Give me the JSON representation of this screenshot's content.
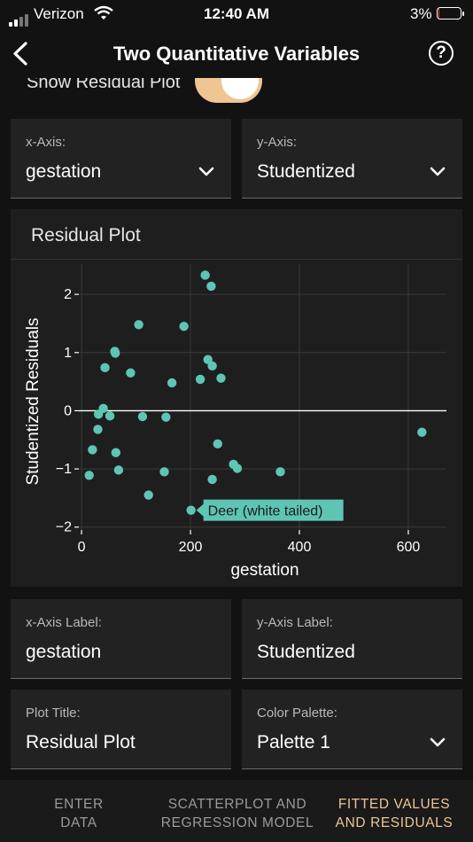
{
  "status": {
    "carrier": "Verizon",
    "time": "12:40 AM",
    "battery": "3%"
  },
  "nav": {
    "title": "Two Quantitative Variables"
  },
  "toggle": {
    "label": "Show Residual Plot",
    "on": true
  },
  "axes_select": {
    "x_label": "x-Axis:",
    "x_value": "gestation",
    "y_label": "y-Axis:",
    "y_value": "Studentized"
  },
  "card": {
    "title": "Residual Plot"
  },
  "chart_data": {
    "type": "scatter",
    "xlabel": "gestation",
    "ylabel": "Studentized Residuals",
    "xlim": [
      -5,
      670
    ],
    "ylim": [
      -2.05,
      2.52
    ],
    "xticks": [
      0,
      200,
      400,
      600
    ],
    "yticks": [
      -2,
      -1,
      0,
      1,
      2
    ],
    "grid": true,
    "reference_line_y": 0,
    "point_color": "#5ec5b5",
    "points": [
      {
        "x": 227,
        "y": 2.33
      },
      {
        "x": 238,
        "y": 2.14
      },
      {
        "x": 105,
        "y": 1.48
      },
      {
        "x": 188,
        "y": 1.45
      },
      {
        "x": 61,
        "y": 1.02
      },
      {
        "x": 62,
        "y": 0.99
      },
      {
        "x": 232,
        "y": 0.88
      },
      {
        "x": 240,
        "y": 0.77
      },
      {
        "x": 43,
        "y": 0.74
      },
      {
        "x": 90,
        "y": 0.65
      },
      {
        "x": 256,
        "y": 0.56
      },
      {
        "x": 218,
        "y": 0.54
      },
      {
        "x": 166,
        "y": 0.48
      },
      {
        "x": 40,
        "y": 0.04
      },
      {
        "x": 31,
        "y": -0.06
      },
      {
        "x": 52,
        "y": -0.09
      },
      {
        "x": 112,
        "y": -0.1
      },
      {
        "x": 155,
        "y": -0.11
      },
      {
        "x": 30,
        "y": -0.32
      },
      {
        "x": 250,
        "y": -0.57
      },
      {
        "x": 625,
        "y": -0.37
      },
      {
        "x": 20,
        "y": -0.67
      },
      {
        "x": 63,
        "y": -0.72
      },
      {
        "x": 279,
        "y": -0.92
      },
      {
        "x": 286,
        "y": -0.99
      },
      {
        "x": 68,
        "y": -1.02
      },
      {
        "x": 152,
        "y": -1.05
      },
      {
        "x": 365,
        "y": -1.05
      },
      {
        "x": 14,
        "y": -1.11
      },
      {
        "x": 240,
        "y": -1.18
      },
      {
        "x": 123,
        "y": -1.45
      },
      {
        "x": 201,
        "y": -1.71
      }
    ],
    "annotation": {
      "text": "Deer (white tailed)",
      "x": 201,
      "y": -1.71
    }
  },
  "labels": {
    "x_axis_label_caption": "x-Axis Label:",
    "x_axis_label_value": "gestation",
    "y_axis_label_caption": "y-Axis Label:",
    "y_axis_label_value": "Studentized",
    "plot_title_caption": "Plot Title:",
    "plot_title_value": "Residual Plot",
    "palette_caption": "Color Palette:",
    "palette_value": "Palette 1"
  },
  "tabs": {
    "t1_line1": "ENTER",
    "t1_line2": "DATA",
    "t2_line1": "SCATTERPLOT AND",
    "t2_line2": "REGRESSION MODEL",
    "t3_line1": "FITTED VALUES",
    "t3_line2": "AND RESIDUALS"
  },
  "colors": {
    "accent": "#efc594",
    "point": "#5ec5b5",
    "background": "#121212",
    "card": "#1e1e1e"
  }
}
